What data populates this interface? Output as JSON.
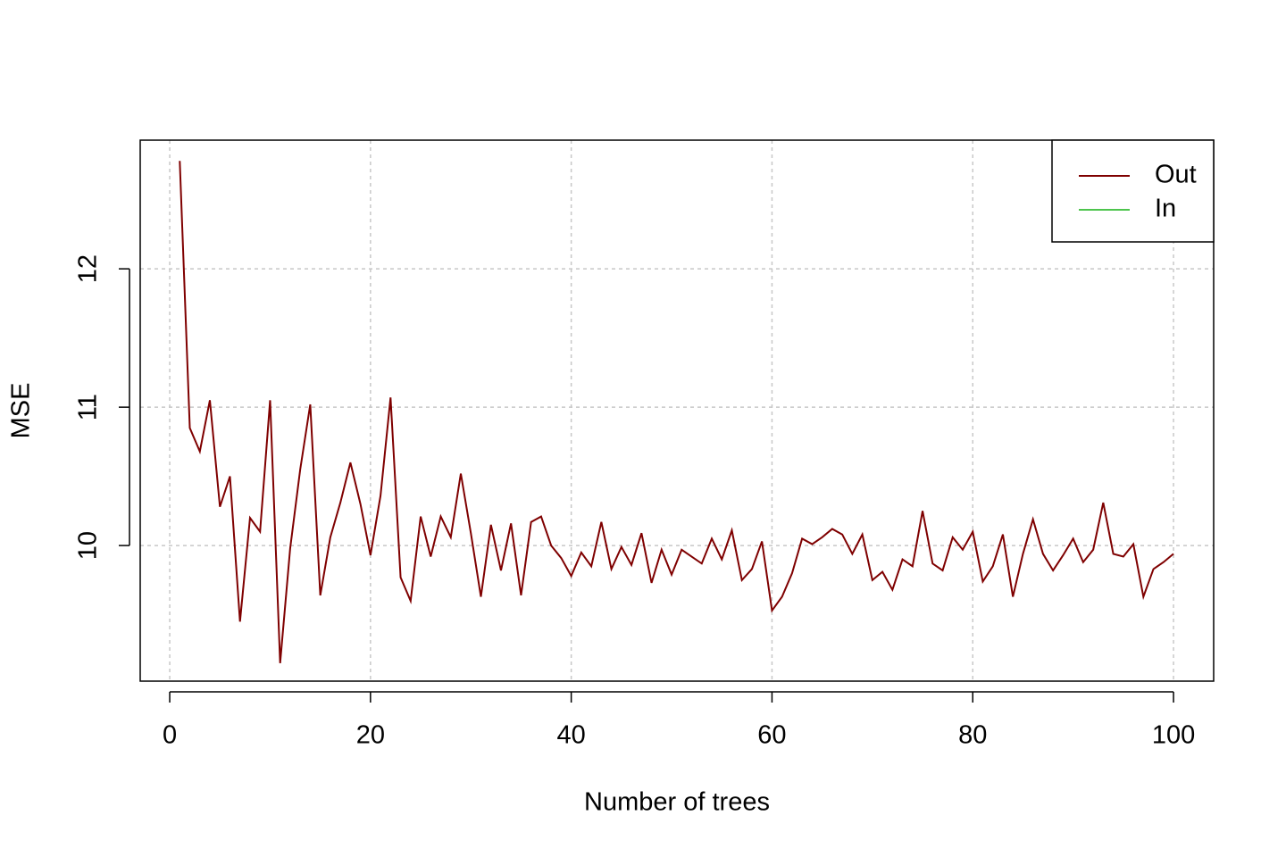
{
  "chart_data": {
    "type": "line",
    "xlabel": "Number of trees",
    "ylabel": "MSE",
    "x": [
      1,
      2,
      3,
      4,
      5,
      6,
      7,
      8,
      9,
      10,
      11,
      12,
      13,
      14,
      15,
      16,
      17,
      18,
      19,
      20,
      21,
      22,
      23,
      24,
      25,
      26,
      27,
      28,
      29,
      30,
      31,
      32,
      33,
      34,
      35,
      36,
      37,
      38,
      39,
      40,
      41,
      42,
      43,
      44,
      45,
      46,
      47,
      48,
      49,
      50,
      51,
      52,
      53,
      54,
      55,
      56,
      57,
      58,
      59,
      60,
      61,
      62,
      63,
      64,
      65,
      66,
      67,
      68,
      69,
      70,
      71,
      72,
      73,
      74,
      75,
      76,
      77,
      78,
      79,
      80,
      81,
      82,
      83,
      84,
      85,
      86,
      87,
      88,
      89,
      90,
      91,
      92,
      93,
      94,
      95,
      96,
      97,
      98,
      99,
      100
    ],
    "series": [
      {
        "name": "Out",
        "color": "#7f0000",
        "values": [
          12.78,
          10.85,
          10.68,
          11.05,
          10.28,
          10.5,
          9.45,
          10.2,
          10.1,
          11.05,
          9.15,
          9.98,
          10.55,
          11.02,
          9.64,
          10.06,
          10.31,
          10.6,
          10.3,
          9.93,
          10.36,
          11.07,
          9.77,
          9.6,
          10.21,
          9.92,
          10.21,
          10.06,
          10.52,
          10.09,
          9.63,
          10.15,
          9.82,
          10.16,
          9.64,
          10.17,
          10.21,
          10.0,
          9.91,
          9.78,
          9.95,
          9.85,
          10.17,
          9.83,
          9.99,
          9.86,
          10.09,
          9.73,
          9.97,
          9.79,
          9.97,
          9.92,
          9.87,
          10.05,
          9.9,
          10.11,
          9.75,
          9.83,
          10.03,
          9.53,
          9.63,
          9.8,
          10.05,
          10.01,
          10.06,
          10.12,
          10.08,
          9.94,
          10.08,
          9.75,
          9.81,
          9.68,
          9.9,
          9.85,
          10.25,
          9.87,
          9.82,
          10.06,
          9.97,
          10.1,
          9.74,
          9.85,
          10.08,
          9.63,
          9.94,
          10.19,
          9.94,
          9.82,
          9.93,
          10.05,
          9.88,
          9.97,
          10.31,
          9.94,
          9.92,
          10.01,
          9.63,
          9.83,
          9.88,
          9.94
        ]
      },
      {
        "name": "In",
        "color": "#4dc44d",
        "values": [
          null,
          null,
          null,
          null,
          null,
          null,
          null,
          null,
          null,
          null,
          null,
          null,
          null,
          null,
          null,
          null,
          null,
          null,
          null,
          null,
          null,
          null,
          null,
          null,
          null,
          null,
          null,
          null,
          null,
          null,
          null,
          null,
          null,
          null,
          null,
          null,
          null,
          null,
          null,
          null,
          null,
          null,
          null,
          null,
          null,
          null,
          null,
          null,
          null,
          null,
          null,
          null,
          null,
          null,
          null,
          null,
          null,
          null,
          null,
          null,
          null,
          null,
          null,
          null,
          null,
          null,
          null,
          null,
          null,
          null,
          null,
          null,
          null,
          null,
          null,
          null,
          null,
          null,
          null,
          null,
          null,
          null,
          null,
          null,
          null,
          null,
          null,
          null,
          null,
          null,
          null,
          null,
          null,
          null,
          null,
          null,
          null,
          null,
          null,
          null
        ]
      }
    ],
    "xlim": [
      -2.94,
      104
    ],
    "ylim": [
      9.02,
      12.93
    ],
    "xticks": [
      0,
      20,
      40,
      60,
      80,
      100
    ],
    "yticks": [
      10,
      11,
      12
    ],
    "grid": true,
    "legend": "top-right"
  }
}
